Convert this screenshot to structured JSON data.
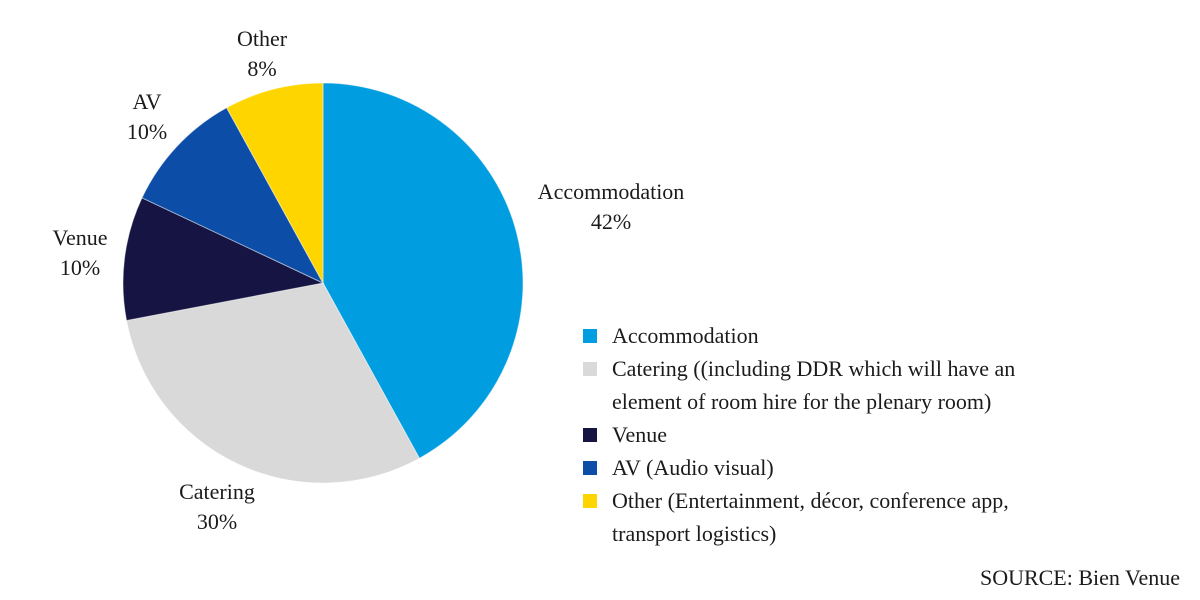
{
  "chart_data": {
    "type": "pie",
    "categories": [
      "Accommodation",
      "Catering",
      "Venue",
      "AV",
      "Other"
    ],
    "values": [
      42,
      30,
      10,
      10,
      8
    ],
    "colors": [
      "#009DE0",
      "#D9D9D9",
      "#151442",
      "#0C4DA8",
      "#FFD500"
    ],
    "start_angle_deg": 0,
    "direction": "clockwise",
    "title": "",
    "legend_position": "right",
    "background": "#FFFFFF",
    "slice_labels": [
      {
        "name": "Accommodation",
        "pct": "42%"
      },
      {
        "name": "Catering",
        "pct": "30%"
      },
      {
        "name": "Venue",
        "pct": "10%"
      },
      {
        "name": "AV",
        "pct": "10%"
      },
      {
        "name": "Other",
        "pct": "8%"
      }
    ],
    "legend_labels": [
      "Accommodation",
      "Catering ((including DDR which will have an element of room hire for the plenary room)",
      "Venue",
      "AV (Audio visual)",
      "Other (Entertainment, décor, conference app, transport logistics)"
    ],
    "source": "SOURCE: Bien Venue"
  }
}
